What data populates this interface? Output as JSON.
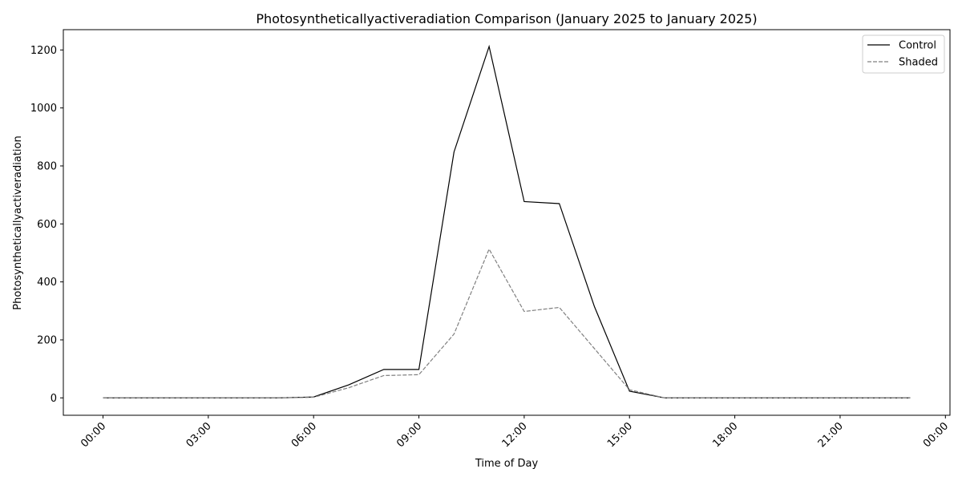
{
  "chart_data": {
    "type": "line",
    "title": "Photosyntheticallyactiveradiation Comparison (January 2025 to January 2025)",
    "xlabel": "Time of Day",
    "ylabel": "Photosyntheticallyactiveradiation",
    "x_hours": [
      0,
      1,
      2,
      3,
      4,
      5,
      6,
      7,
      8,
      9,
      10,
      11,
      12,
      13,
      14,
      15,
      16,
      17,
      18,
      19,
      20,
      21,
      22,
      23
    ],
    "xlim_hours": [
      -1.13,
      24.13
    ],
    "ylim": [
      -60,
      1270
    ],
    "x_ticks": [
      {
        "hour": 0,
        "label": "00:00"
      },
      {
        "hour": 3,
        "label": "03:00"
      },
      {
        "hour": 6,
        "label": "06:00"
      },
      {
        "hour": 9,
        "label": "09:00"
      },
      {
        "hour": 12,
        "label": "12:00"
      },
      {
        "hour": 15,
        "label": "15:00"
      },
      {
        "hour": 18,
        "label": "18:00"
      },
      {
        "hour": 21,
        "label": "21:00"
      },
      {
        "hour": 24,
        "label": "00:00"
      }
    ],
    "y_ticks": [
      {
        "value": 0,
        "label": "0"
      },
      {
        "value": 200,
        "label": "200"
      },
      {
        "value": 400,
        "label": "400"
      },
      {
        "value": 600,
        "label": "600"
      },
      {
        "value": 800,
        "label": "800"
      },
      {
        "value": 1000,
        "label": "1000"
      },
      {
        "value": 1200,
        "label": "1200"
      }
    ],
    "grid": false,
    "legend_position": "top-right",
    "series": [
      {
        "name": "Control",
        "color": "#000000",
        "dash": "solid",
        "values": [
          0,
          0,
          0,
          0,
          0,
          0,
          3,
          45,
          98,
          98,
          848,
          1212,
          677,
          670,
          315,
          23,
          0,
          0,
          0,
          0,
          0,
          0,
          0,
          0
        ]
      },
      {
        "name": "Shaded",
        "color": "#808080",
        "dash": "dashed",
        "values": [
          0,
          0,
          0,
          0,
          0,
          0,
          2,
          35,
          77,
          80,
          220,
          513,
          298,
          312,
          170,
          28,
          0,
          0,
          0,
          0,
          0,
          0,
          0,
          0
        ]
      }
    ]
  }
}
